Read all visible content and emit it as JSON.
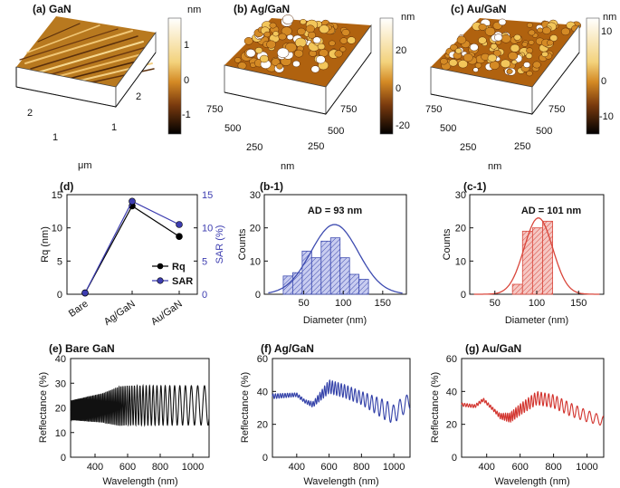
{
  "chart_data": [
    {
      "id": "a",
      "type": "surface3d",
      "title": "(a) GaN",
      "colorbar": {
        "unit": "nm",
        "ticks": [
          "1",
          "0",
          "-1"
        ],
        "colors": [
          "#ffffff",
          "#e9b13c",
          "#b8651a",
          "#000000"
        ]
      },
      "axis_labels": {
        "right": [
          "2",
          "1"
        ],
        "left": [
          "2",
          "1"
        ],
        "unit": "μm"
      }
    },
    {
      "id": "b",
      "type": "surface3d",
      "title": "(b) Ag/GaN",
      "colorbar": {
        "unit": "nm",
        "ticks": [
          "20",
          "0",
          "-20"
        ],
        "colors": [
          "#ffffff",
          "#e9b13c",
          "#b8651a",
          "#000000"
        ]
      },
      "axis_labels": {
        "right": [
          "750",
          "500",
          "250"
        ],
        "left": [
          "750",
          "500",
          "250"
        ],
        "unit": "nm"
      }
    },
    {
      "id": "c",
      "type": "surface3d",
      "title": "(c) Au/GaN",
      "colorbar": {
        "unit": "nm",
        "ticks": [
          "10",
          "0",
          "-10"
        ],
        "colors": [
          "#ffffff",
          "#e9b13c",
          "#b8651a",
          "#000000"
        ]
      },
      "axis_labels": {
        "right": [
          "750",
          "500",
          "250"
        ],
        "left": [
          "750",
          "500",
          "250"
        ],
        "unit": "nm"
      }
    },
    {
      "id": "d",
      "type": "line",
      "title": "(d)",
      "categories": [
        "Bare",
        "Ag/GaN",
        "Au/GaN"
      ],
      "series": [
        {
          "name": "Rq",
          "values": [
            0.2,
            13.3,
            8.7
          ],
          "color": "#000000"
        },
        {
          "name": "SAR",
          "values": [
            0.2,
            14.0,
            10.5
          ],
          "color": "#3d3db0"
        }
      ],
      "ylabel": "Rq (nm)",
      "y2label": "SAR (%)",
      "ylim": [
        0,
        15
      ],
      "yticks": [
        "0",
        "5",
        "10",
        "15"
      ],
      "y2ticks": [
        "0",
        "5",
        "10",
        "15"
      ]
    },
    {
      "id": "b1",
      "type": "bar",
      "title": "(b-1)",
      "annotation": "AD = 93 nm",
      "xlabel": "Diameter (nm)",
      "ylabel": "Counts",
      "xlim": [
        0,
        180
      ],
      "ylim": [
        0,
        30
      ],
      "xticks": [
        "50",
        "100",
        "150"
      ],
      "yticks": [
        "0",
        "10",
        "20",
        "30"
      ],
      "bin_width": 12,
      "bins": [
        30,
        42,
        54,
        66,
        78,
        90,
        102,
        114,
        126
      ],
      "values": [
        5.5,
        6.5,
        13,
        11,
        16,
        17,
        11,
        6,
        4.5
      ],
      "fit": {
        "mu": 89,
        "sigma": 30,
        "peak": 21
      },
      "color": "#3d4bb0"
    },
    {
      "id": "c1",
      "type": "bar",
      "title": "(c-1)",
      "annotation": "AD = 101 nm",
      "xlabel": "Diameter (nm)",
      "ylabel": "Counts",
      "xlim": [
        20,
        180
      ],
      "ylim": [
        0,
        30
      ],
      "xticks": [
        "50",
        "100",
        "150"
      ],
      "yticks": [
        "0",
        "10",
        "20",
        "30"
      ],
      "bin_width": 12,
      "bins": [
        77,
        89,
        101,
        113
      ],
      "values": [
        3,
        19,
        20,
        22
      ],
      "fit": {
        "mu": 102,
        "sigma": 17,
        "peak": 23
      },
      "color": "#d9463b"
    },
    {
      "id": "e",
      "type": "line",
      "title": "(e) Bare GaN",
      "xlabel": "Wavelength (nm)",
      "ylabel": "Reflectance (%)",
      "xlim": [
        250,
        1100
      ],
      "ylim": [
        0,
        40
      ],
      "xticks": [
        "400",
        "600",
        "800",
        "1000"
      ],
      "yticks": [
        "0",
        "10",
        "20",
        "30",
        "40"
      ],
      "color": "#111111",
      "signal": {
        "mean": [
          [
            250,
            19
          ],
          [
            450,
            20
          ],
          [
            600,
            21
          ],
          [
            800,
            21
          ],
          [
            1100,
            21
          ]
        ],
        "amp": [
          [
            250,
            4
          ],
          [
            450,
            6
          ],
          [
            550,
            8
          ],
          [
            800,
            8
          ],
          [
            1100,
            8
          ]
        ],
        "period": [
          [
            250,
            6
          ],
          [
            550,
            11
          ],
          [
            800,
            25
          ],
          [
            1100,
            45
          ]
        ]
      }
    },
    {
      "id": "f",
      "type": "line",
      "title": "(f) Ag/GaN",
      "xlabel": "Wavelength (nm)",
      "ylabel": "Reflectance (%)",
      "xlim": [
        250,
        1100
      ],
      "ylim": [
        0,
        60
      ],
      "xticks": [
        "400",
        "600",
        "800",
        "1000"
      ],
      "yticks": [
        "0",
        "20",
        "40",
        "60"
      ],
      "color": "#3240a8",
      "signal": {
        "mean": [
          [
            250,
            37
          ],
          [
            400,
            38
          ],
          [
            450,
            34
          ],
          [
            500,
            32
          ],
          [
            600,
            43
          ],
          [
            700,
            40
          ],
          [
            800,
            36
          ],
          [
            900,
            31
          ],
          [
            1000,
            26
          ],
          [
            1040,
            30
          ],
          [
            1100,
            34
          ]
        ],
        "amp": [
          [
            250,
            1.5
          ],
          [
            450,
            1
          ],
          [
            520,
            2
          ],
          [
            600,
            4
          ],
          [
            800,
            4
          ],
          [
            950,
            6
          ],
          [
            1100,
            5
          ]
        ],
        "period": [
          [
            250,
            15
          ],
          [
            550,
            14
          ],
          [
            800,
            25
          ],
          [
            1100,
            45
          ]
        ]
      }
    },
    {
      "id": "g",
      "type": "line",
      "title": "(g) Au/GaN",
      "xlabel": "Wavelength (nm)",
      "ylabel": "Reflectance (%)",
      "xlim": [
        250,
        1100
      ],
      "ylim": [
        0,
        60
      ],
      "xticks": [
        "400",
        "600",
        "800",
        "1000"
      ],
      "yticks": [
        "0",
        "20",
        "40",
        "60"
      ],
      "color": "#d2322c",
      "signal": {
        "mean": [
          [
            250,
            32
          ],
          [
            330,
            31
          ],
          [
            380,
            35
          ],
          [
            420,
            31
          ],
          [
            480,
            25
          ],
          [
            540,
            24
          ],
          [
            600,
            29
          ],
          [
            700,
            36
          ],
          [
            800,
            34
          ],
          [
            900,
            29
          ],
          [
            1000,
            25
          ],
          [
            1100,
            22
          ]
        ],
        "amp": [
          [
            250,
            1
          ],
          [
            450,
            1
          ],
          [
            550,
            3
          ],
          [
            700,
            4
          ],
          [
            900,
            4
          ],
          [
            1100,
            3
          ]
        ],
        "period": [
          [
            250,
            15
          ],
          [
            550,
            12
          ],
          [
            800,
            25
          ],
          [
            1100,
            45
          ]
        ]
      }
    }
  ]
}
